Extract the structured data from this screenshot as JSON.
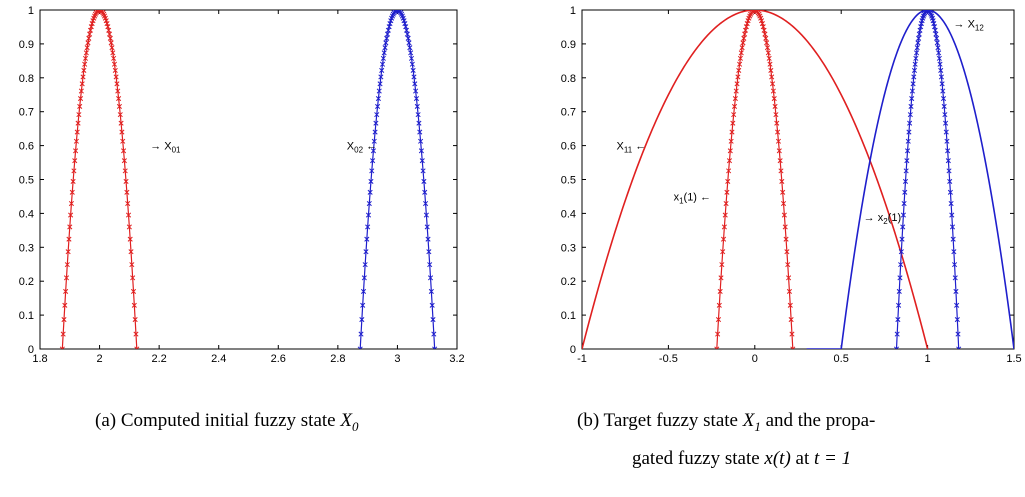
{
  "chart_data": [
    {
      "type": "line",
      "xlim": [
        1.8,
        3.2
      ],
      "ylim": [
        0,
        1
      ],
      "xticks": [
        "1.8",
        "2",
        "2.2",
        "2.4",
        "2.6",
        "2.8",
        "3",
        "3.2"
      ],
      "yticks": [
        "0",
        "0.1",
        "0.2",
        "0.3",
        "0.4",
        "0.5",
        "0.6",
        "0.7",
        "0.8",
        "0.9",
        "1"
      ],
      "series": [
        {
          "name": "X01",
          "color": "#e02020",
          "marker": "x",
          "shape": "parabola",
          "center": 2.0,
          "halfwidth": 0.125
        },
        {
          "name": "X02",
          "color": "#1f1fcc",
          "marker": "x",
          "shape": "parabola",
          "center": 3.0,
          "halfwidth": 0.125
        }
      ],
      "annotations": [
        {
          "text": "→ X",
          "sub": "01",
          "x": 2.17,
          "y": 0.6
        },
        {
          "text": "X",
          "sub": "02",
          "after": " ←",
          "x": 2.83,
          "y": 0.6
        }
      ],
      "caption": {
        "prefix": "(a) Computed initial fuzzy state ",
        "math": "X",
        "math_sub": "0"
      }
    },
    {
      "type": "line",
      "xlim": [
        -1,
        1.5
      ],
      "ylim": [
        0,
        1
      ],
      "xticks": [
        "-1",
        "-0.5",
        "0",
        "0.5",
        "1",
        "1.5"
      ],
      "yticks": [
        "0",
        "0.1",
        "0.2",
        "0.3",
        "0.4",
        "0.5",
        "0.6",
        "0.7",
        "0.8",
        "0.9",
        "1"
      ],
      "series": [
        {
          "name": "X11",
          "color": "#e02020",
          "marker": "none",
          "shape": "parabola",
          "center": 0.0,
          "halfwidth": 1.0
        },
        {
          "name": "x1(1)",
          "color": "#e02020",
          "marker": "x",
          "shape": "parabola",
          "center": 0.0,
          "halfwidth": 0.22
        },
        {
          "name": "X12",
          "color": "#1f1fcc",
          "marker": "none",
          "shape": "parabola",
          "center": 1.0,
          "halfwidth": 0.5
        },
        {
          "name": "x2(1)",
          "color": "#1f1fcc",
          "marker": "x",
          "shape": "parabola",
          "center": 1.0,
          "halfwidth": 0.18
        }
      ],
      "annotations": [
        {
          "text": "X",
          "sub": "11",
          "after": " ←",
          "x": -0.8,
          "y": 0.6
        },
        {
          "text": "x",
          "sub": "1",
          "after": "(1) ←",
          "x": -0.47,
          "y": 0.45
        },
        {
          "text": "→ x",
          "sub": "2",
          "after": "(1)",
          "x": 0.63,
          "y": 0.39
        },
        {
          "text": "→ X",
          "sub": "12",
          "x": 1.15,
          "y": 0.96
        }
      ],
      "caption": {
        "line1_prefix": "(b) Target fuzzy state ",
        "line1_math": "X",
        "line1_math_sub": "1",
        "line1_suffix": " and the propa-",
        "line2_prefix": "gated fuzzy state ",
        "line2_math": "x(t)",
        "line2_mid": " at ",
        "line2_math2": "t = 1"
      }
    }
  ]
}
